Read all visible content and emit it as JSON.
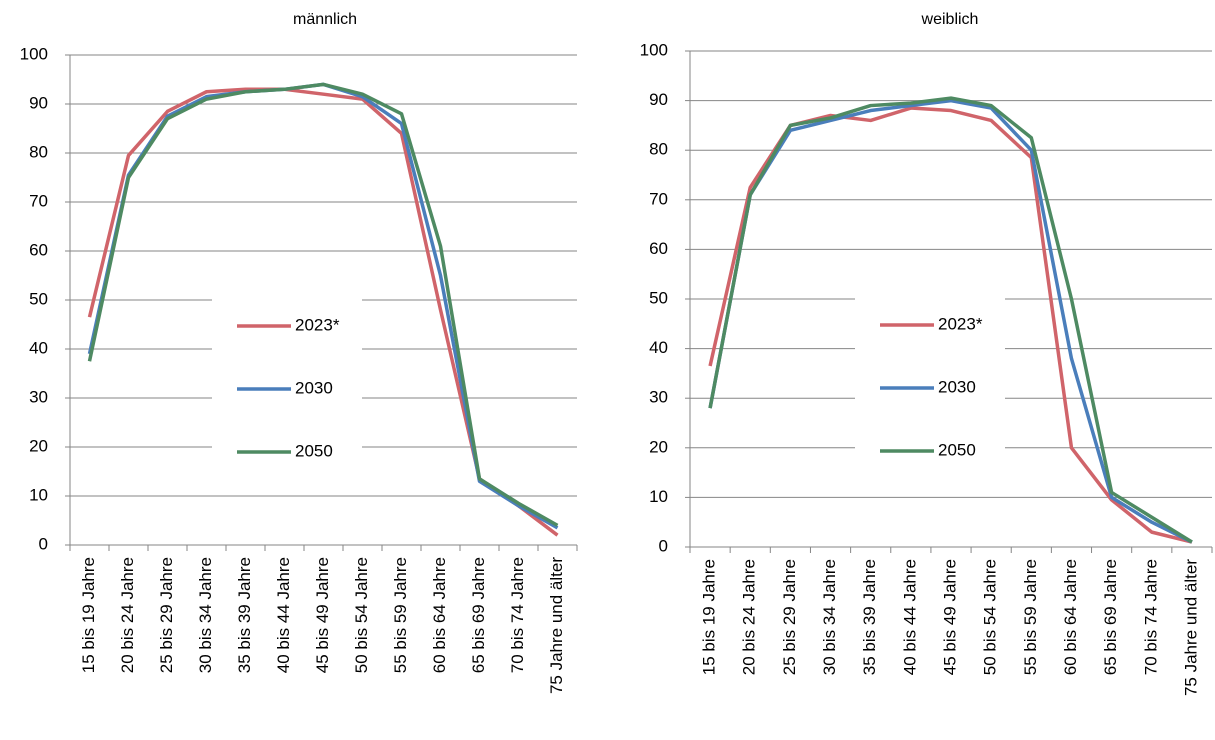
{
  "chart_data": [
    {
      "type": "line",
      "title": "männlich",
      "categories": [
        "15 bis 19 Jahre",
        "20 bis 24 Jahre",
        "25 bis 29 Jahre",
        "30 bis 34 Jahre",
        "35 bis 39 Jahre",
        "40 bis 44 Jahre",
        "45 bis 49 Jahre",
        "50 bis 54 Jahre",
        "55 bis 59 Jahre",
        "60 bis 64 Jahre",
        "65 bis 69 Jahre",
        "70 bis 74 Jahre",
        "75 Jahre und älter"
      ],
      "series": [
        {
          "name": "2023*",
          "color": "#d0646a",
          "values": [
            46.5,
            79.5,
            88.5,
            92.5,
            93,
            93,
            92,
            91,
            84,
            48,
            13.5,
            8,
            2
          ]
        },
        {
          "name": "2030",
          "color": "#4a7ebb",
          "values": [
            39,
            75.5,
            87.5,
            91.5,
            92.5,
            93,
            94,
            91.5,
            86,
            55,
            13,
            8,
            3.5
          ]
        },
        {
          "name": "2050",
          "color": "#4e8a62",
          "values": [
            37.5,
            75,
            87,
            91,
            92.5,
            93,
            94,
            92,
            88,
            61,
            13.5,
            8.5,
            4
          ]
        }
      ],
      "ylim": [
        0,
        100
      ],
      "yticks": [
        0,
        10,
        20,
        30,
        40,
        50,
        60,
        70,
        80,
        90,
        100
      ],
      "grid": true,
      "legend": "center"
    },
    {
      "type": "line",
      "title": "weiblich",
      "categories": [
        "15 bis 19 Jahre",
        "20 bis 24 Jahre",
        "25 bis 29 Jahre",
        "30 bis 34 Jahre",
        "35 bis 39 Jahre",
        "40 bis 44 Jahre",
        "45 bis 49 Jahre",
        "50 bis 54 Jahre",
        "55 bis 59 Jahre",
        "60 bis 64 Jahre",
        "65 bis 69 Jahre",
        "70 bis 74 Jahre",
        "75 Jahre und älter"
      ],
      "series": [
        {
          "name": "2023*",
          "color": "#d0646a",
          "values": [
            36.5,
            72.5,
            85,
            87,
            86,
            88.5,
            88,
            86,
            78.5,
            20,
            9.5,
            3,
            1
          ]
        },
        {
          "name": "2030",
          "color": "#4a7ebb",
          "values": [
            28,
            71,
            84,
            86,
            88,
            89,
            90,
            88.5,
            80,
            38,
            10,
            5,
            1
          ]
        },
        {
          "name": "2050",
          "color": "#4e8a62",
          "values": [
            28,
            71,
            85,
            86.5,
            89,
            89.5,
            90.5,
            89,
            82.5,
            50,
            11,
            6,
            1
          ]
        }
      ],
      "ylim": [
        0,
        100
      ],
      "yticks": [
        0,
        10,
        20,
        30,
        40,
        50,
        60,
        70,
        80,
        90,
        100
      ],
      "grid": true,
      "legend": "center"
    }
  ]
}
